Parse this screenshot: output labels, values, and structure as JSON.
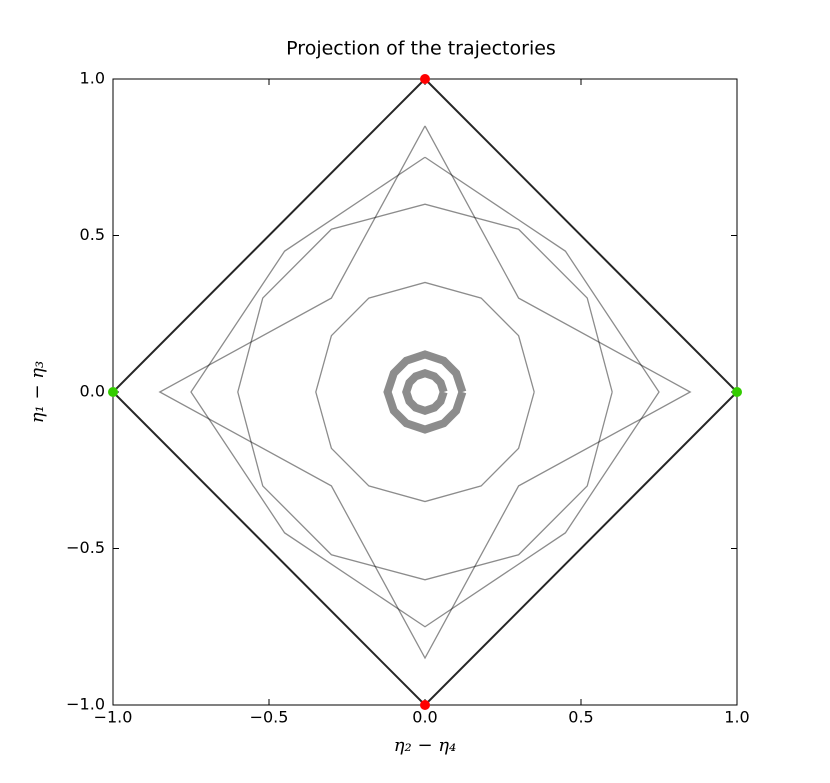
{
  "chart_data": {
    "type": "line",
    "title": "Projection of the trajectories",
    "x_label": "η₂ − η₄",
    "y_label": "η₁ − η₃",
    "xlim": [
      -1,
      1
    ],
    "ylim": [
      -1,
      1
    ],
    "xticks": [
      {
        "value": -1,
        "label": "−1.0"
      },
      {
        "value": -0.5,
        "label": "−0.5"
      },
      {
        "value": 0,
        "label": "0.0"
      },
      {
        "value": 0.5,
        "label": "0.5"
      },
      {
        "value": 1,
        "label": "1.0"
      }
    ],
    "yticks": [
      {
        "value": -1,
        "label": "−1.0"
      },
      {
        "value": -0.5,
        "label": "−0.5"
      },
      {
        "value": 0,
        "label": "0.0"
      },
      {
        "value": 0.5,
        "label": "0.5"
      },
      {
        "value": 1,
        "label": "1.0"
      }
    ],
    "line_color": "#000000",
    "lines": [
      {
        "x": [
          0,
          1,
          0,
          -1,
          0
        ],
        "y": [
          1,
          0,
          -1,
          0,
          1
        ]
      },
      {
        "x": [
          0,
          0.3,
          0.85,
          0.3,
          0,
          -0.3,
          -0.85,
          -0.3,
          0
        ],
        "y": [
          0.85,
          0.3,
          0,
          -0.3,
          -0.85,
          -0.3,
          0,
          0.3,
          0.85
        ]
      },
      {
        "x": [
          0,
          0.45,
          0.75,
          0.45,
          0,
          -0.45,
          -0.75,
          -0.45,
          0
        ],
        "y": [
          0.75,
          0.45,
          0,
          -0.45,
          -0.75,
          -0.45,
          0,
          0.45,
          0.75
        ]
      },
      {
        "x": [
          0.6,
          0.52,
          0.3,
          0,
          -0.3,
          -0.52,
          -0.6,
          -0.52,
          -0.3,
          0,
          0.3,
          0.52,
          0.6
        ],
        "y": [
          0,
          0.3,
          0.52,
          0.6,
          0.52,
          0.3,
          0,
          -0.3,
          -0.52,
          -0.6,
          -0.52,
          -0.3,
          0
        ]
      },
      {
        "x": [
          0.35,
          0.3,
          0.18,
          0,
          -0.18,
          -0.3,
          -0.35,
          -0.3,
          -0.18,
          0,
          0.18,
          0.3,
          0.35
        ],
        "y": [
          0,
          0.18,
          0.3,
          0.35,
          0.3,
          0.18,
          0,
          -0.18,
          -0.3,
          -0.35,
          -0.3,
          -0.18,
          0
        ]
      },
      {
        "x": [
          0.12,
          0.1,
          0.06,
          0,
          -0.06,
          -0.1,
          -0.12,
          -0.1,
          -0.06,
          0,
          0.06,
          0.1,
          0.12
        ],
        "y": [
          0,
          0.06,
          0.1,
          0.12,
          0.1,
          0.06,
          0,
          -0.06,
          -0.1,
          -0.12,
          -0.1,
          -0.06,
          0
        ]
      },
      {
        "x": [
          0.06,
          0.05,
          0.03,
          0,
          -0.03,
          -0.05,
          -0.06,
          -0.05,
          -0.03,
          0,
          0.03,
          0.05,
          0.06
        ],
        "y": [
          0,
          0.03,
          0.05,
          0.06,
          0.05,
          0.03,
          0,
          -0.03,
          -0.05,
          -0.06,
          -0.05,
          -0.03,
          0
        ]
      }
    ],
    "points": [
      {
        "x": 0,
        "y": 1,
        "color": "#ff0000"
      },
      {
        "x": 0,
        "y": -1,
        "color": "#ff0000"
      },
      {
        "x": -1,
        "y": 0,
        "color": "#33cc00"
      },
      {
        "x": 1,
        "y": 0,
        "color": "#33cc00"
      }
    ]
  }
}
